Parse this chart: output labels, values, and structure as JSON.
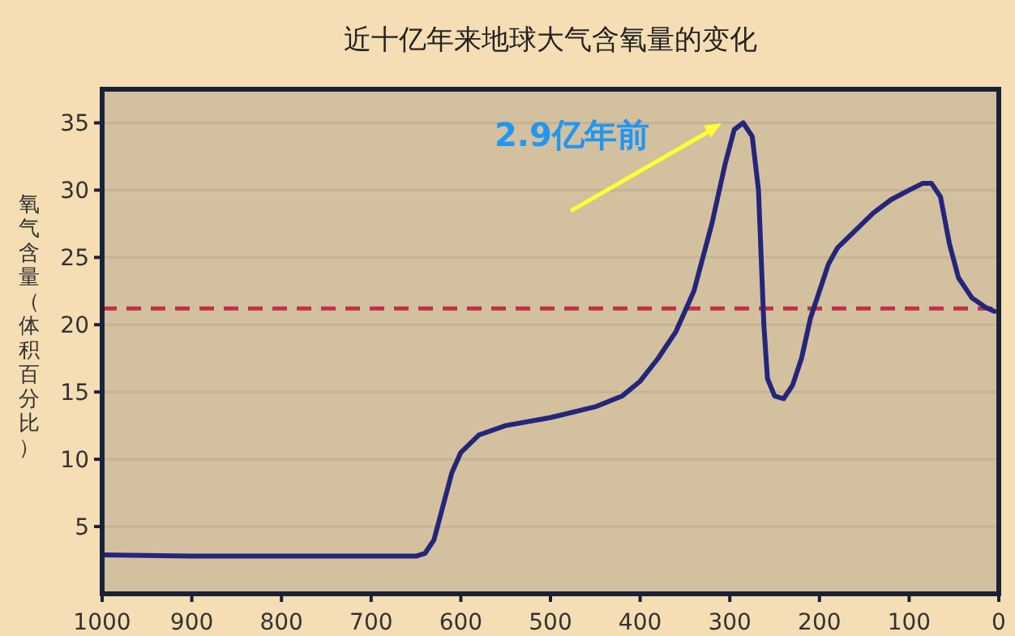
{
  "chart_data": {
    "type": "line",
    "title": "近十亿年来地球大气含氧量的变化",
    "ylabel": "氧气含量（体积百分比）",
    "x": [
      1000,
      900,
      800,
      700,
      650,
      640,
      630,
      620,
      610,
      600,
      580,
      550,
      500,
      450,
      420,
      400,
      380,
      360,
      340,
      320,
      305,
      295,
      285,
      275,
      268,
      265,
      262,
      258,
      250,
      240,
      230,
      220,
      210,
      200,
      190,
      180,
      160,
      140,
      120,
      100,
      85,
      75,
      65,
      55,
      45,
      30,
      15,
      5
    ],
    "series": [
      {
        "color": "#23267a",
        "values": [
          2.9,
          2.8,
          2.8,
          2.8,
          2.8,
          3.0,
          4,
          6.5,
          9,
          10.5,
          11.8,
          12.5,
          13.1,
          13.9,
          14.7,
          15.8,
          17.5,
          19.5,
          22.5,
          27.5,
          32,
          34.5,
          35,
          34,
          30,
          25,
          20,
          16,
          14.7,
          14.5,
          15.5,
          17.5,
          20.5,
          22.5,
          24.5,
          25.7,
          27,
          28.3,
          29.3,
          30,
          30.5,
          30.5,
          29.5,
          26,
          23.5,
          22,
          21.3,
          21
        ]
      }
    ],
    "xlim": [
      1000,
      0
    ],
    "ylim": [
      0,
      37.5
    ],
    "xticks": [
      1000,
      900,
      800,
      700,
      600,
      500,
      400,
      300,
      200,
      100,
      0
    ],
    "yticks": [
      5,
      10,
      15,
      20,
      25,
      30,
      35
    ],
    "ref_lines": [
      {
        "axis": "y",
        "value": 21.2,
        "color": "#c0304a",
        "line_style": "dashed"
      }
    ],
    "annotations": [
      "2.9亿年前"
    ],
    "grid": "y",
    "marker": "none",
    "line_style": "solid"
  }
}
